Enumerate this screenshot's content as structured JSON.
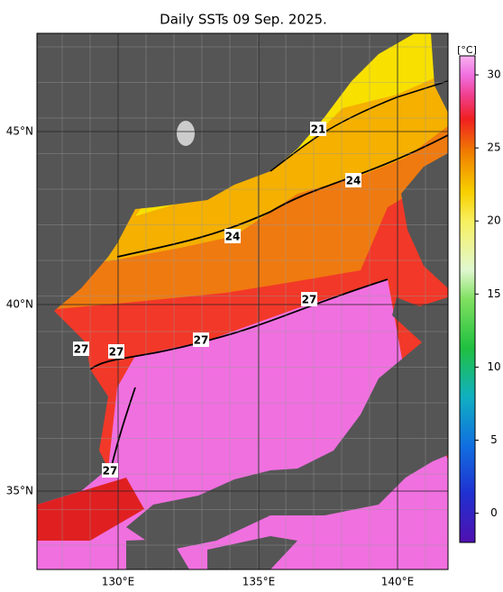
{
  "title": "Daily SSTs 09 Sep. 2025.",
  "map": {
    "lon_labels": [
      "130°E",
      "135°E",
      "140°E"
    ],
    "lat_labels": [
      "45°N",
      "40°N",
      "35°N"
    ],
    "contour_labels": [
      21,
      24,
      24,
      27,
      27,
      27,
      27,
      27
    ]
  },
  "colorbar": {
    "unit": "[°C]",
    "range": [
      -2,
      31.3
    ],
    "ticks": [
      0,
      5,
      10,
      15,
      20,
      25,
      30
    ]
  }
}
